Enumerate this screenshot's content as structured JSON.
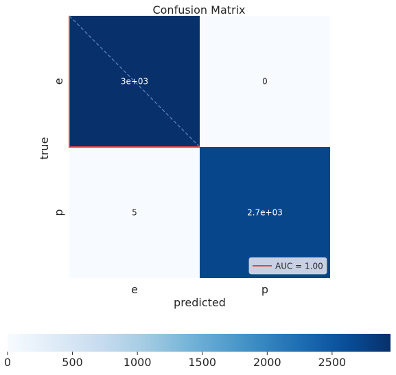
{
  "chart_data": {
    "type": "heatmap",
    "title": "Confusion Matrix",
    "xlabel": "predicted",
    "ylabel": "true",
    "x_categories": [
      "e",
      "p"
    ],
    "y_categories": [
      "e",
      "p"
    ],
    "values": [
      [
        3000,
        0
      ],
      [
        5,
        2700
      ]
    ],
    "cell_labels": [
      [
        "3e+03",
        "0"
      ],
      [
        "5",
        "2.7e+03"
      ]
    ],
    "colormap": "Blues",
    "colors": {
      "low": "#f7fbff",
      "high": "#08306b",
      "roc_line": "#e8413d",
      "diagonal": "#5b84b8"
    },
    "colorbar": {
      "orientation": "horizontal",
      "min": 0,
      "max": 2950,
      "ticks": [
        0,
        500,
        1000,
        1500,
        2000,
        2500
      ],
      "tick_labels": [
        "0",
        "500",
        "1000",
        "1500",
        "2000",
        "2500"
      ]
    },
    "overlay": {
      "roc_curve": {
        "x": [
          0,
          0,
          1
        ],
        "y": [
          0,
          1,
          1
        ]
      },
      "chance_line": {
        "x": [
          0,
          1
        ],
        "y": [
          0,
          1
        ]
      }
    },
    "legend": {
      "entries": [
        "AUC = 1.00"
      ],
      "placement": "bottom-right"
    },
    "grid": false
  }
}
